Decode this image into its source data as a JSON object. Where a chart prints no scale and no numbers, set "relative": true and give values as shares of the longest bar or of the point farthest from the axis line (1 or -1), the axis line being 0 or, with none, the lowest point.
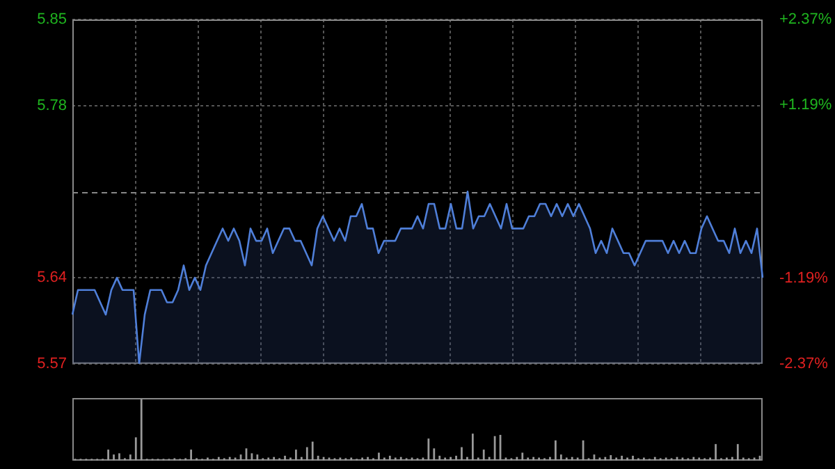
{
  "chart_data": [
    {
      "type": "area",
      "categories": [
        null,
        null,
        null,
        null,
        null,
        null,
        null,
        null,
        null,
        null,
        null,
        null,
        null,
        null,
        null,
        null,
        null,
        null,
        null,
        null,
        null,
        null,
        null,
        null,
        null,
        null,
        null,
        null,
        null,
        null,
        null,
        null,
        null,
        null,
        null,
        null,
        null,
        null,
        null,
        null,
        null,
        null,
        null,
        null,
        null,
        null,
        null,
        null,
        null,
        null,
        null,
        null,
        null,
        null,
        null,
        null,
        null,
        null,
        null,
        null,
        null,
        null,
        null,
        null,
        null,
        null,
        null,
        null,
        null,
        null,
        null,
        null,
        null,
        null,
        null,
        null,
        null,
        null,
        null,
        null,
        null,
        null,
        null,
        null,
        null,
        null,
        null,
        null,
        null,
        null,
        null,
        null,
        null,
        null,
        null,
        null,
        null,
        null,
        null,
        null,
        null,
        null,
        null,
        null,
        null,
        null,
        null,
        null,
        null,
        null,
        null,
        null,
        null,
        null,
        null,
        null,
        null,
        null,
        null,
        null,
        null,
        null,
        null,
        null,
        null
      ],
      "series": [
        {
          "color": "#4f7fd9",
          "values": [
            5.61,
            5.63,
            5.63,
            5.63,
            5.63,
            5.62,
            5.61,
            5.63,
            5.64,
            5.63,
            5.63,
            5.63,
            5.57,
            5.61,
            5.63,
            5.63,
            5.63,
            5.62,
            5.62,
            5.63,
            5.65,
            5.63,
            5.64,
            5.63,
            5.65,
            5.66,
            5.67,
            5.68,
            5.67,
            5.68,
            5.67,
            5.65,
            5.68,
            5.67,
            5.67,
            5.68,
            5.66,
            5.67,
            5.68,
            5.68,
            5.67,
            5.67,
            5.66,
            5.65,
            5.68,
            5.69,
            5.68,
            5.67,
            5.68,
            5.67,
            5.69,
            5.69,
            5.7,
            5.68,
            5.68,
            5.66,
            5.67,
            5.67,
            5.67,
            5.68,
            5.68,
            5.68,
            5.69,
            5.68,
            5.7,
            5.7,
            5.68,
            5.68,
            5.7,
            5.68,
            5.68,
            5.71,
            5.68,
            5.69,
            5.69,
            5.7,
            5.69,
            5.68,
            5.7,
            5.68,
            5.68,
            5.68,
            5.69,
            5.69,
            5.7,
            5.7,
            5.69,
            5.7,
            5.69,
            5.7,
            5.69,
            5.7,
            5.69,
            5.68,
            5.66,
            5.67,
            5.66,
            5.68,
            5.67,
            5.66,
            5.66,
            5.65,
            5.66,
            5.67,
            5.67,
            5.67,
            5.67,
            5.66,
            5.67,
            5.66,
            5.67,
            5.66,
            5.66,
            5.68,
            5.69,
            5.68,
            5.67,
            5.67,
            5.66,
            5.68,
            5.66,
            5.67,
            5.66,
            5.68,
            5.64
          ]
        }
      ],
      "ylim": [
        5.57,
        5.85
      ],
      "yticks": [
        5.57,
        5.64,
        5.78,
        5.85
      ],
      "y2lim": [
        -2.37,
        2.37
      ],
      "y2ticks": [
        {
          "value": -2.37,
          "label": "-2.37%"
        },
        {
          "value": -1.19,
          "label": "-1.19%"
        },
        {
          "value": 1.19,
          "label": "+1.19%"
        },
        {
          "value": 2.37,
          "label": "+2.37%"
        }
      ],
      "ref_lines": [
        {
          "axis": "y",
          "value": 5.71,
          "line_style": "dashed"
        }
      ],
      "grid": true,
      "tick_labels": "y"
    },
    {
      "type": "bar",
      "relative": true,
      "color": "#9a9a9a",
      "categories": [
        null,
        null,
        null,
        null,
        null,
        null,
        null,
        null,
        null,
        null,
        null,
        null,
        null,
        null,
        null,
        null,
        null,
        null,
        null,
        null,
        null,
        null,
        null,
        null,
        null,
        null,
        null,
        null,
        null,
        null,
        null,
        null,
        null,
        null,
        null,
        null,
        null,
        null,
        null,
        null,
        null,
        null,
        null,
        null,
        null,
        null,
        null,
        null,
        null,
        null,
        null,
        null,
        null,
        null,
        null,
        null,
        null,
        null,
        null,
        null,
        null,
        null,
        null,
        null,
        null,
        null,
        null,
        null,
        null,
        null,
        null,
        null,
        null,
        null,
        null,
        null,
        null,
        null,
        null,
        null,
        null,
        null,
        null,
        null,
        null,
        null,
        null,
        null,
        null,
        null,
        null,
        null,
        null,
        null,
        null,
        null,
        null,
        null,
        null,
        null,
        null,
        null,
        null,
        null,
        null,
        null,
        null,
        null,
        null,
        null,
        null,
        null,
        null,
        null,
        null,
        null,
        null,
        null,
        null,
        null,
        null,
        null,
        null,
        null,
        null
      ],
      "values": [
        0.03,
        0.03,
        0.03,
        0.03,
        0.03,
        0.03,
        0.18,
        0.1,
        0.12,
        0.04,
        0.1,
        0.38,
        1,
        0.03,
        0.03,
        0.03,
        0.03,
        0.03,
        0.04,
        0.03,
        0.04,
        0.18,
        0.04,
        0.03,
        0.05,
        0.03,
        0.06,
        0.04,
        0.06,
        0.05,
        0.1,
        0.2,
        0.12,
        0.1,
        0.04,
        0.05,
        0.06,
        0.04,
        0.08,
        0.05,
        0.18,
        0.06,
        0.22,
        0.31,
        0.08,
        0.06,
        0.05,
        0.04,
        0.05,
        0.04,
        0.05,
        0.03,
        0.05,
        0.06,
        0.04,
        0.13,
        0.05,
        0.08,
        0.05,
        0.06,
        0.04,
        0.05,
        0.04,
        0.05,
        0.36,
        0.2,
        0.08,
        0.05,
        0.06,
        0.08,
        0.22,
        0.06,
        0.44,
        0.05,
        0.18,
        0.06,
        0.4,
        0.42,
        0.05,
        0.04,
        0.06,
        0.13,
        0.05,
        0.06,
        0.05,
        0.04,
        0.06,
        0.33,
        0.1,
        0.05,
        0.06,
        0.05,
        0.33,
        0.04,
        0.1,
        0.05,
        0.06,
        0.09,
        0.05,
        0.08,
        0.05,
        0.08,
        0.04,
        0.05,
        0.03,
        0.06,
        0.04,
        0.05,
        0.04,
        0.06,
        0.05,
        0.04,
        0.06,
        0.05,
        0.04,
        0.05,
        0.27,
        0.04,
        0.05,
        0.06,
        0.27,
        0.05,
        0.04,
        0.05,
        0.08
      ]
    }
  ]
}
